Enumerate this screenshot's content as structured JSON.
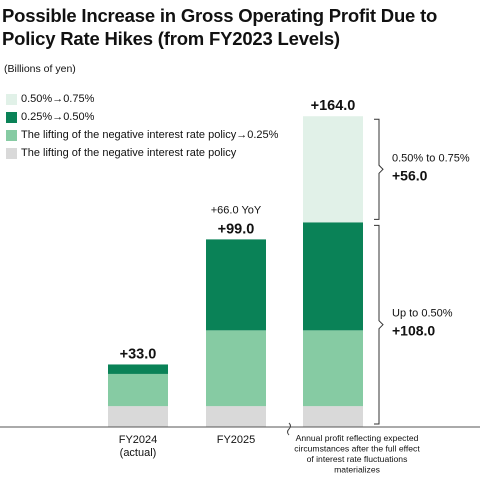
{
  "title": "Possible Increase in Gross Operating Profit Due to Policy Rate Hikes (from FY2023 Levels)",
  "units": "(Billions of yen)",
  "chart_data": {
    "type": "bar",
    "stacked": true,
    "categories": [
      "FY2024\n(actual)",
      "FY2025",
      "Annual profit reflecting expected circumstances after the full effect of interest rate fluctuations materializes"
    ],
    "series": [
      {
        "name": "The lifting of the negative interest rate policy",
        "color": "#d9d9d9",
        "values": [
          11,
          11,
          11
        ]
      },
      {
        "name": "The lifting of the negative interest rate policy→0.25%",
        "color": "#86cba3",
        "values": [
          17,
          40,
          40
        ]
      },
      {
        "name": "0.25%→0.50%",
        "color": "#0a8257",
        "values": [
          5,
          48,
          57
        ]
      },
      {
        "name": "0.50%→0.75%",
        "color": "#e1f1e8",
        "values": [
          0,
          0,
          56
        ]
      }
    ],
    "totals": [
      "+33.0",
      "+99.0",
      "+164.0"
    ],
    "yoy_note": "+66.0 YoY",
    "brackets": [
      {
        "label": "0.50% to 0.75%",
        "value": "+56.0",
        "from": 108,
        "to": 164
      },
      {
        "label": "Up to 0.50%",
        "value": "+108.0",
        "from": 0,
        "to": 108
      }
    ],
    "ylim": [
      0,
      175
    ],
    "legend_order": [
      3,
      2,
      1,
      0
    ],
    "legend_position": "top-left",
    "grid": false
  }
}
